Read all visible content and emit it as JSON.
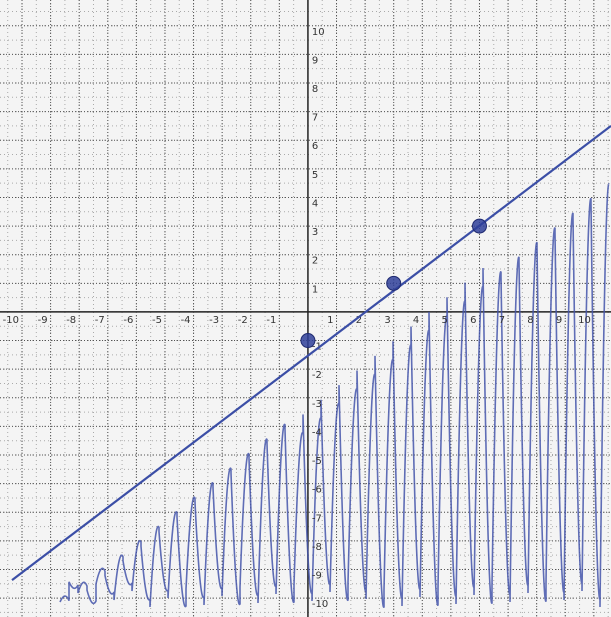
{
  "chart_data": {
    "type": "line",
    "xlim": [
      -10.77,
      10.6
    ],
    "ylim": [
      -10.66,
      10.9
    ],
    "xticks": [
      -10,
      -9,
      -8,
      -7,
      -6,
      -5,
      -4,
      -3,
      -2,
      -1,
      1,
      2,
      3,
      4,
      5,
      6,
      7,
      8,
      9,
      10
    ],
    "yticks": [
      -10,
      -9,
      -8,
      -7,
      -6,
      -5,
      -4,
      -3,
      -2,
      -1,
      1,
      2,
      3,
      4,
      5,
      6,
      7,
      8,
      9,
      10
    ],
    "grid": true,
    "series": [
      {
        "color": "#3b4ea6",
        "x": [
          -10.35,
          10.6
        ],
        "values": [
          -9.37,
          6.5
        ]
      },
      {
        "color": "#2f3f99",
        "markers": true,
        "x": [
          0,
          3,
          6
        ],
        "values": [
          -1,
          1,
          3
        ]
      }
    ]
  }
}
